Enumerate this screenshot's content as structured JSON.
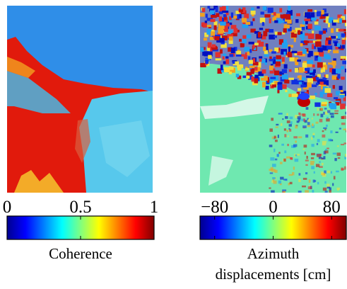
{
  "chart_data": [
    {
      "type": "heatmap",
      "colormap": "jet",
      "colorbar_label": [
        "Coherence"
      ],
      "clim": [
        0,
        1
      ],
      "cticks": [
        0,
        0.5,
        1
      ]
    },
    {
      "type": "heatmap",
      "colormap": "jet",
      "colorbar_label": [
        "Azimuth",
        "displacements [cm]"
      ],
      "clim": [
        -100,
        100
      ],
      "cticks": [
        {
          "value": -80,
          "label": "−80"
        },
        0,
        80
      ]
    }
  ]
}
